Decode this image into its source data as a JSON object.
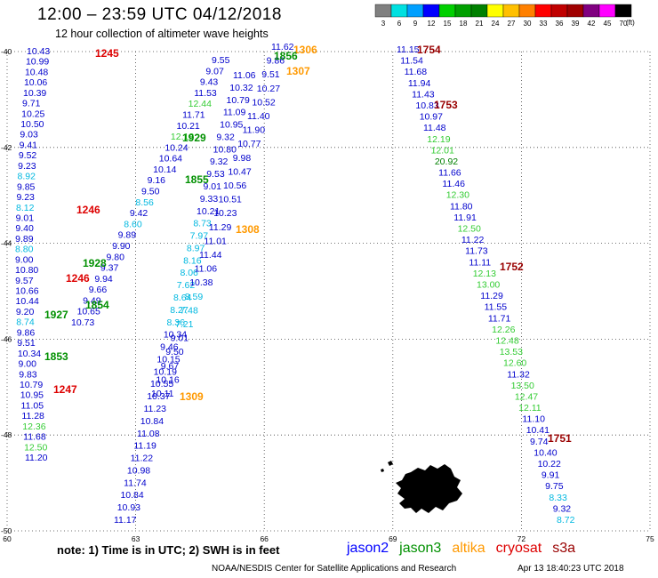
{
  "title": "12:00 – 23:59 UTC 04/12/2018",
  "subtitle": "12 hour collection of altimeter wave heights",
  "note": "note:  1) Time is in UTC;  2) SWH is in feet",
  "credit": "NOAA/NESDIS Center for Satellite Applications and Research",
  "timestamp": "Apr 13 18:40:23 UTC 2018",
  "units": "(ft)",
  "color_scale": {
    "ticks": [
      "3",
      "6",
      "9",
      "12",
      "15",
      "18",
      "21",
      "24",
      "27",
      "30",
      "33",
      "36",
      "39",
      "42",
      "45",
      "70"
    ],
    "colors": [
      "#808080",
      "#00e0e0",
      "#00a0ff",
      "#0000ff",
      "#00d000",
      "#00a000",
      "#008000",
      "#ffff00",
      "#ffc000",
      "#ff8000",
      "#ff0000",
      "#c00000",
      "#a00000",
      "#800080",
      "#ff00ff",
      "#000000"
    ]
  },
  "satellites": [
    {
      "name": "jason2",
      "color": "#0000ff"
    },
    {
      "name": "jason3",
      "color": "#009000"
    },
    {
      "name": "altika",
      "color": "#ff9900"
    },
    {
      "name": "cryosat",
      "color": "#dd0000"
    },
    {
      "name": "s3a",
      "color": "#990000"
    }
  ],
  "map": {
    "lat_ticks": [
      "-40",
      "-42",
      "-44",
      "-46",
      "-48",
      "-50"
    ],
    "lon_ticks": [
      "60",
      "63",
      "66",
      "69",
      "72",
      "75"
    ],
    "lon_range": [
      60,
      75
    ],
    "lat_range": [
      -50,
      -40
    ]
  },
  "tracks": [
    {
      "time": "1245",
      "sat": "cryosat",
      "values": [
        "10.43",
        "10.99",
        "10.48",
        "10.06",
        "10.39",
        "9.71",
        "10.25",
        "10.50",
        "9.03",
        "9.41",
        "9.52",
        "9.23",
        "8.92",
        "9.85",
        "9.23",
        "8.12",
        "9.01",
        "9.40",
        "9.89",
        "8.80",
        "9.00",
        "10.80",
        "9.57",
        "10.66",
        "10.44",
        "9.20",
        "8.74",
        "9.86",
        "9.51",
        "10.34",
        "9.00",
        "9.83",
        "10.79",
        "10.95",
        "11.05",
        "11.28",
        "12.36",
        "11.68",
        "12.50",
        "11.20"
      ]
    },
    {
      "time": "1246",
      "sat": "cryosat",
      "values": [
        "9.55",
        "9.07",
        "9.43",
        "11.53",
        "12.44",
        "11.71",
        "10.21",
        "12.18",
        "10.24",
        "10.64",
        "10.14",
        "9.16",
        "9.50",
        "8.56",
        "9.42",
        "8.60",
        "9.89",
        "9.90",
        "9.80",
        "9.37",
        "9.94",
        "9.66",
        "9.49",
        "10.65",
        "10.73"
      ]
    },
    {
      "time": "1247",
      "sat": "cryosat",
      "values": [
        "11.06",
        "10.32",
        "10.79",
        "11.09",
        "10.95",
        "9.32",
        "10.80",
        "9.32",
        "9.53",
        "9.01",
        "9.33",
        "10.21",
        "8.73",
        "7.97",
        "8.97",
        "8.16",
        "8.06",
        "7.62",
        "8.64",
        "8.27",
        "8.36",
        "10.34",
        "9.46",
        "10.15",
        "10.19",
        "10.55",
        "10.37",
        "11.23",
        "10.84",
        "11.08",
        "11.19",
        "11.22",
        "10.98",
        "11.74",
        "10.84",
        "10.93",
        "11.17"
      ]
    },
    {
      "time": "1306",
      "sat": "altika",
      "values": [
        "11.62",
        "9.86",
        "9.51",
        "10.27",
        "10.52",
        "11.40",
        "11.90",
        "10.77",
        "9.98",
        "10.47",
        "10.56",
        "10.51",
        "10.23",
        "11.29",
        "11.01",
        "11.44",
        "11.06",
        "10.38",
        "8.59",
        "7.48",
        "7.21",
        "9.01",
        "9.50",
        "9.67",
        "10.16",
        "10.11"
      ]
    },
    {
      "time": "1753",
      "sat": "s3a",
      "values": [
        "11.15",
        "11.54",
        "11.68",
        "11.94",
        "11.43",
        "10.83",
        "10.97",
        "11.48",
        "12.19",
        "12.01",
        "20.92",
        "11.66",
        "11.46",
        "12.30",
        "11.80",
        "11.91",
        "12.50",
        "11.22",
        "11.73",
        "11.11",
        "12.13",
        "13.00",
        "11.29",
        "11.55",
        "11.71",
        "12.26",
        "12.48",
        "13.53",
        "12.60",
        "11.32",
        "13.50",
        "12.47",
        "12.11",
        "11.10",
        "10.41",
        "9.74",
        "10.40",
        "10.22",
        "9.91",
        "9.75",
        "8.33",
        "9.32",
        "8.72"
      ]
    }
  ],
  "time_labels": [
    "1245",
    "1246",
    "1247",
    "1246",
    "1306",
    "1307",
    "1308",
    "1309",
    "1754",
    "1753",
    "1752",
    "1751",
    "1856",
    "1855",
    "1854",
    "1853",
    "1928",
    "1929",
    "1927"
  ]
}
